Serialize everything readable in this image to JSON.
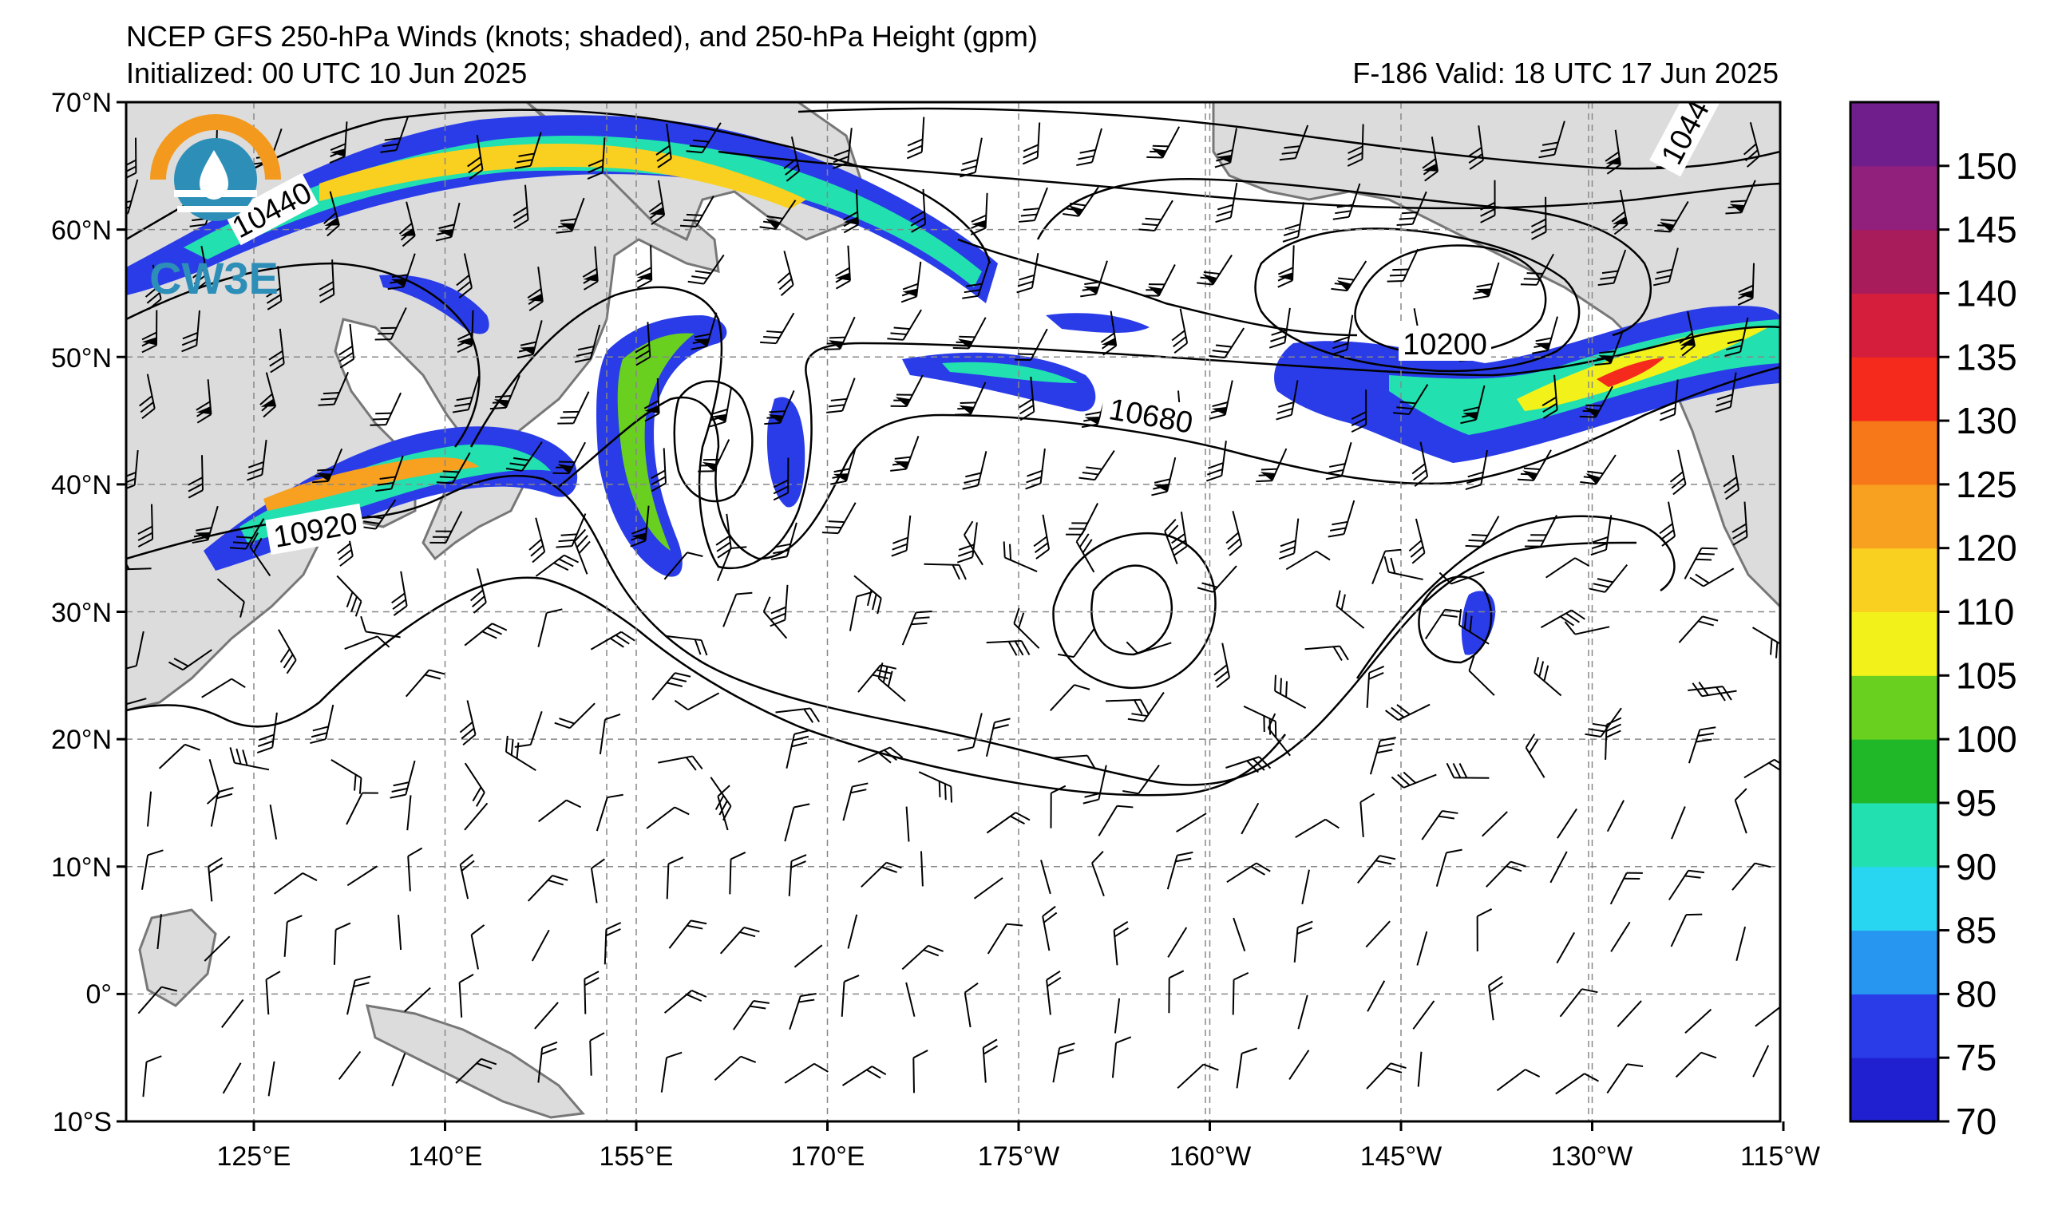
{
  "header": {
    "title": "NCEP GFS 250-hPa Winds (knots; shaded), and 250-hPa Height (gpm)",
    "initialized": "Initialized: 00 UTC 10 Jun 2025",
    "valid": "F-186  Valid: 18 UTC 17 Jun 2025"
  },
  "logo": {
    "text": "CW3E"
  },
  "axes": {
    "lat_labels": [
      "70°N",
      "60°N",
      "50°N",
      "40°N",
      "30°N",
      "20°N",
      "10°N",
      "0°",
      "10°S"
    ],
    "lon_labels": [
      "125°E",
      "140°E",
      "155°E",
      "170°E",
      "175°W",
      "160°W",
      "145°W",
      "130°W",
      "115°W"
    ]
  },
  "colorbar": {
    "ticks": [
      "70",
      "75",
      "80",
      "85",
      "90",
      "95",
      "100",
      "105",
      "110",
      "120",
      "125",
      "130",
      "135",
      "140",
      "145",
      "150"
    ],
    "colors": [
      "#2020d0",
      "#2a3ce8",
      "#2696f0",
      "#28d6f2",
      "#22e0b0",
      "#20b828",
      "#6ad020",
      "#f2f21a",
      "#fad020",
      "#f8a020",
      "#f67818",
      "#f52a1c",
      "#d41e3c",
      "#a81c5c",
      "#90207c",
      "#701e8c"
    ]
  },
  "contour_labels": [
    "10440",
    "10920",
    "10680",
    "10200",
    "1044"
  ],
  "colors": {
    "land": "#dcdcdc",
    "coast": "#777777",
    "grid": "#888888",
    "contour": "#000000"
  }
}
